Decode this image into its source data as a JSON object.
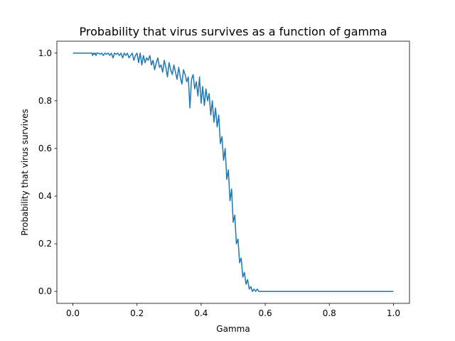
{
  "chart_data": {
    "type": "line",
    "title": "Probability that virus survives as a function of gamma",
    "xlabel": "Gamma",
    "ylabel": "Probability that virus survives",
    "xlim": [
      -0.05,
      1.05
    ],
    "ylim": [
      -0.05,
      1.05
    ],
    "xticks": [
      0.0,
      0.2,
      0.4,
      0.6,
      0.8,
      1.0
    ],
    "yticks": [
      0.0,
      0.2,
      0.4,
      0.6,
      0.8,
      1.0
    ],
    "xtick_labels": [
      "0.0",
      "0.2",
      "0.4",
      "0.6",
      "0.8",
      "1.0"
    ],
    "ytick_labels": [
      "0.0",
      "0.2",
      "0.4",
      "0.6",
      "0.8",
      "1.0"
    ],
    "grid": false,
    "color": "#1f77b4",
    "series": [
      {
        "x": [
          0.0,
          0.06,
          0.061,
          0.065,
          0.067,
          0.07,
          0.072,
          0.075,
          0.08,
          0.085,
          0.09,
          0.095,
          0.1,
          0.105,
          0.11,
          0.115,
          0.12,
          0.125,
          0.13,
          0.135,
          0.14,
          0.145,
          0.15,
          0.155,
          0.16,
          0.165,
          0.17,
          0.175,
          0.18,
          0.185,
          0.19,
          0.195,
          0.2,
          0.205,
          0.21,
          0.215,
          0.22,
          0.225,
          0.23,
          0.235,
          0.24,
          0.245,
          0.25,
          0.255,
          0.26,
          0.265,
          0.27,
          0.275,
          0.28,
          0.285,
          0.29,
          0.295,
          0.3,
          0.305,
          0.31,
          0.315,
          0.32,
          0.325,
          0.33,
          0.335,
          0.34,
          0.345,
          0.35,
          0.355,
          0.36,
          0.365,
          0.37,
          0.375,
          0.38,
          0.385,
          0.39,
          0.395,
          0.4,
          0.405,
          0.41,
          0.415,
          0.42,
          0.425,
          0.43,
          0.435,
          0.44,
          0.445,
          0.45,
          0.455,
          0.46,
          0.465,
          0.47,
          0.475,
          0.48,
          0.485,
          0.49,
          0.495,
          0.5,
          0.505,
          0.51,
          0.515,
          0.52,
          0.525,
          0.53,
          0.535,
          0.54,
          0.545,
          0.55,
          0.555,
          0.56,
          0.565,
          0.57,
          0.575,
          0.58,
          1.0
        ],
        "y": [
          1.0,
          1.0,
          0.99,
          1.0,
          0.995,
          1.0,
          0.99,
          1.0,
          1.0,
          0.995,
          1.0,
          0.99,
          1.0,
          0.995,
          1.0,
          0.99,
          1.0,
          0.98,
          1.0,
          0.995,
          1.0,
          0.99,
          1.0,
          0.98,
          1.0,
          0.99,
          1.0,
          0.98,
          0.99,
          1.0,
          0.97,
          0.99,
          1.0,
          0.96,
          1.0,
          0.95,
          0.99,
          0.96,
          0.98,
          0.97,
          0.99,
          0.95,
          0.97,
          0.93,
          0.96,
          0.98,
          0.94,
          0.95,
          0.92,
          0.97,
          0.94,
          0.9,
          0.96,
          0.93,
          0.91,
          0.95,
          0.92,
          0.89,
          0.94,
          0.9,
          0.87,
          0.93,
          0.91,
          0.88,
          0.9,
          0.77,
          0.89,
          0.91,
          0.85,
          0.88,
          0.82,
          0.9,
          0.79,
          0.86,
          0.78,
          0.85,
          0.8,
          0.83,
          0.74,
          0.8,
          0.71,
          0.77,
          0.69,
          0.74,
          0.62,
          0.65,
          0.55,
          0.6,
          0.47,
          0.51,
          0.38,
          0.43,
          0.29,
          0.32,
          0.2,
          0.22,
          0.12,
          0.14,
          0.06,
          0.08,
          0.03,
          0.05,
          0.01,
          0.02,
          0.0,
          0.01,
          0.0,
          0.01,
          0.0,
          0.0
        ]
      }
    ]
  }
}
